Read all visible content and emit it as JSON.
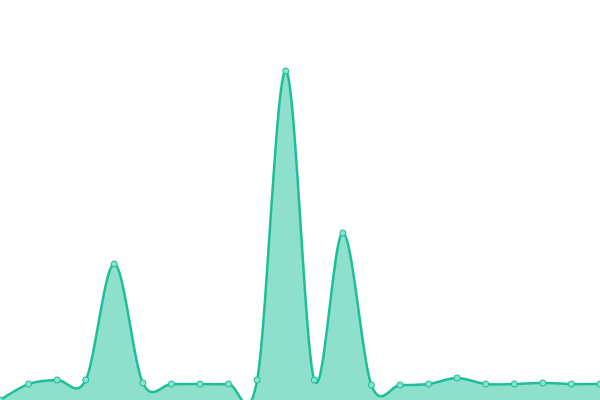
{
  "chart_data": {
    "type": "area",
    "color": "#1dbf99",
    "values": [
      0,
      16,
      20,
      20,
      136,
      17,
      16,
      16,
      16,
      20,
      329,
      20,
      167,
      15,
      15,
      16,
      22,
      16,
      16,
      17,
      16,
      16
    ],
    "ylim": [
      0,
      400
    ]
  }
}
